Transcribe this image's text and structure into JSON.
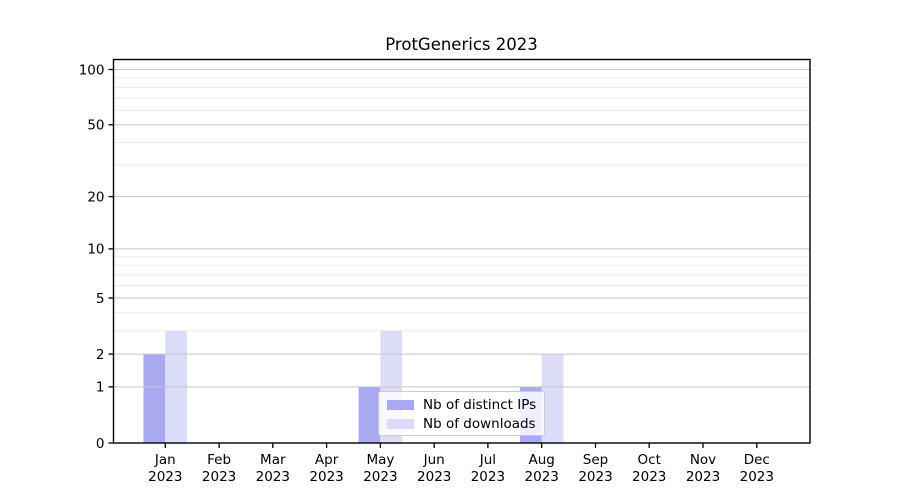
{
  "chart_data": {
    "type": "bar",
    "title": "ProtGenerics 2023",
    "xlabel": "",
    "ylabel": "",
    "y_scale": "log1p",
    "ylim": [
      0,
      100
    ],
    "grid": true,
    "legend_position": "bottom-center-inside",
    "categories": [
      [
        "Jan",
        "2023"
      ],
      [
        "Feb",
        "2023"
      ],
      [
        "Mar",
        "2023"
      ],
      [
        "Apr",
        "2023"
      ],
      [
        "May",
        "2023"
      ],
      [
        "Jun",
        "2023"
      ],
      [
        "Jul",
        "2023"
      ],
      [
        "Aug",
        "2023"
      ],
      [
        "Sep",
        "2023"
      ],
      [
        "Oct",
        "2023"
      ],
      [
        "Nov",
        "2023"
      ],
      [
        "Dec",
        "2023"
      ]
    ],
    "series": [
      {
        "name": "Nb of distinct IPs",
        "color": "#a9a9f1",
        "values": [
          2,
          0,
          0,
          0,
          1,
          0,
          0,
          1,
          0,
          0,
          0,
          0
        ]
      },
      {
        "name": "Nb of downloads",
        "color": "#dcdcf8",
        "values": [
          3,
          0,
          0,
          0,
          3,
          0,
          0,
          2,
          0,
          0,
          0,
          0
        ]
      }
    ],
    "y_ticks": [
      0,
      1,
      2,
      5,
      10,
      20,
      50,
      100
    ],
    "minor_gridlines": [
      3,
      4,
      6,
      7,
      8,
      9,
      30,
      40,
      60,
      70,
      80,
      90
    ],
    "colors": {
      "grid_major": "#c7c7c7",
      "grid_minor": "#ebebeb",
      "axis": "#000000",
      "text": "#000000"
    }
  }
}
